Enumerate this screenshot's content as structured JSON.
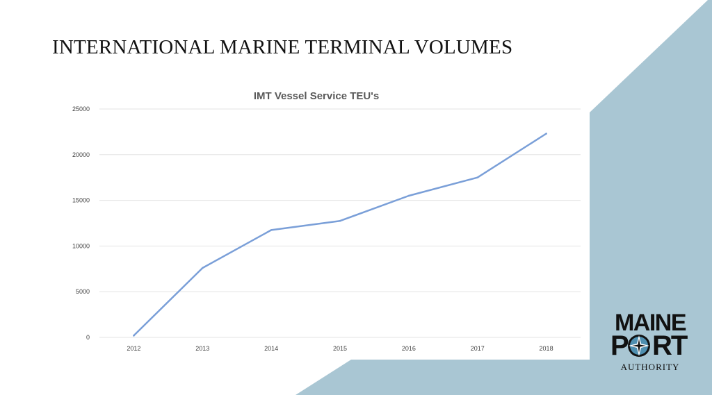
{
  "slide": {
    "title": "INTERNATIONAL MARINE TERMINAL VOLUMES"
  },
  "colors": {
    "accent_panel": "#a9c6d3",
    "line": "#7a9fd8",
    "grid": "#e3e3e3",
    "tick_text": "#3f3f3f"
  },
  "logo": {
    "line1": "MAINE",
    "line2_left": "P",
    "line2_right": "RT",
    "line3": "AUTHORITY",
    "compass_icon": "compass-rose-icon"
  },
  "chart_data": {
    "type": "line",
    "title": "IMT Vessel Service TEU's",
    "categories": [
      "2012",
      "2013",
      "2014",
      "2015",
      "2016",
      "2017",
      "2018"
    ],
    "series": [
      {
        "values": [
          200,
          7600,
          11750,
          12750,
          15500,
          17500,
          22300
        ]
      }
    ],
    "ylim": [
      0,
      25000
    ],
    "yticks": [
      "0",
      "5000",
      "10000",
      "15000",
      "20000",
      "25000"
    ],
    "grid": true,
    "legend": "none",
    "xlabel": "",
    "ylabel": ""
  }
}
